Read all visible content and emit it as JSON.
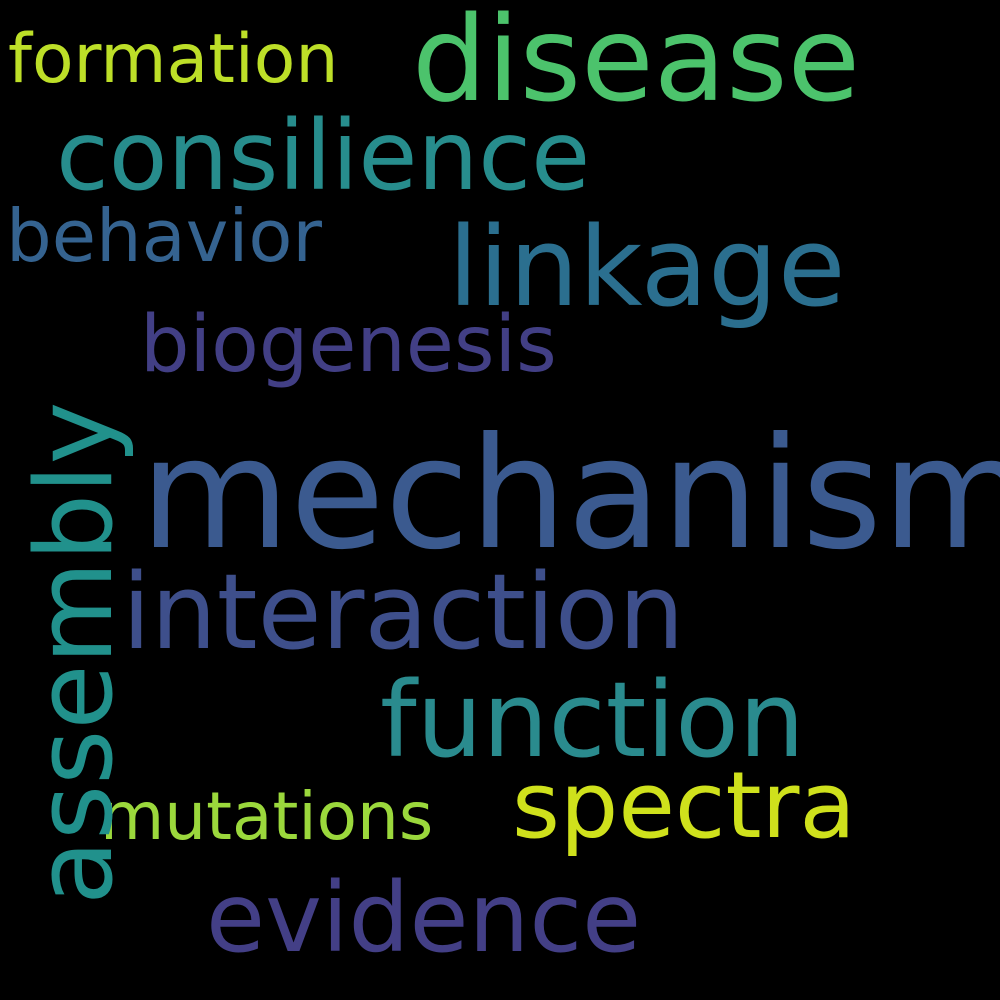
{
  "words": {
    "mechanism": {
      "text": "mechanism",
      "color": "#3b5a8f"
    },
    "interaction": {
      "text": "interaction",
      "color": "#3e4f8b"
    },
    "function": {
      "text": "function",
      "color": "#2a8b8e"
    },
    "spectra": {
      "text": "spectra",
      "color": "#cfe11c"
    },
    "evidence": {
      "text": "evidence",
      "color": "#433f86"
    },
    "linkage": {
      "text": "linkage",
      "color": "#2b6f8f"
    },
    "consilience": {
      "text": "consilience",
      "color": "#278d8d"
    },
    "disease": {
      "text": "disease",
      "color": "#4cc36c"
    },
    "formation": {
      "text": "formation",
      "color": "#bddf28"
    },
    "behavior": {
      "text": "behavior",
      "color": "#356390"
    },
    "biogenesis": {
      "text": "biogenesis",
      "color": "#423f85"
    },
    "mutations": {
      "text": "mutations",
      "color": "#9bd83c"
    },
    "assembly": {
      "text": "assembly",
      "color": "#21918c"
    }
  },
  "background_color": "#000000"
}
